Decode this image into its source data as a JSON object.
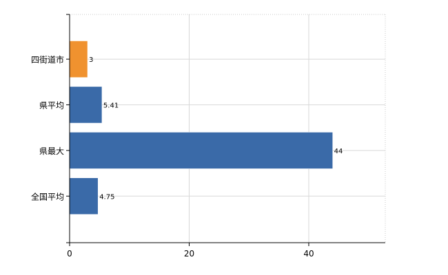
{
  "chart_data": {
    "type": "bar",
    "orientation": "horizontal",
    "categories": [
      "四街道市",
      "県平均",
      "県最大",
      "全国平均"
    ],
    "values": [
      3,
      5.41,
      44,
      4.75
    ],
    "value_labels": [
      "3",
      "5.41",
      "44",
      "4.75"
    ],
    "bar_colors": [
      "#f0922f",
      "#3a6aa8",
      "#3a6aa8",
      "#3a6aa8"
    ],
    "x_ticks": [
      0,
      20,
      40
    ],
    "x_tick_labels": [
      "0",
      "20",
      "40"
    ],
    "xlim": [
      0,
      52.8
    ],
    "grid": true,
    "title": "",
    "xlabel": "",
    "ylabel": ""
  }
}
